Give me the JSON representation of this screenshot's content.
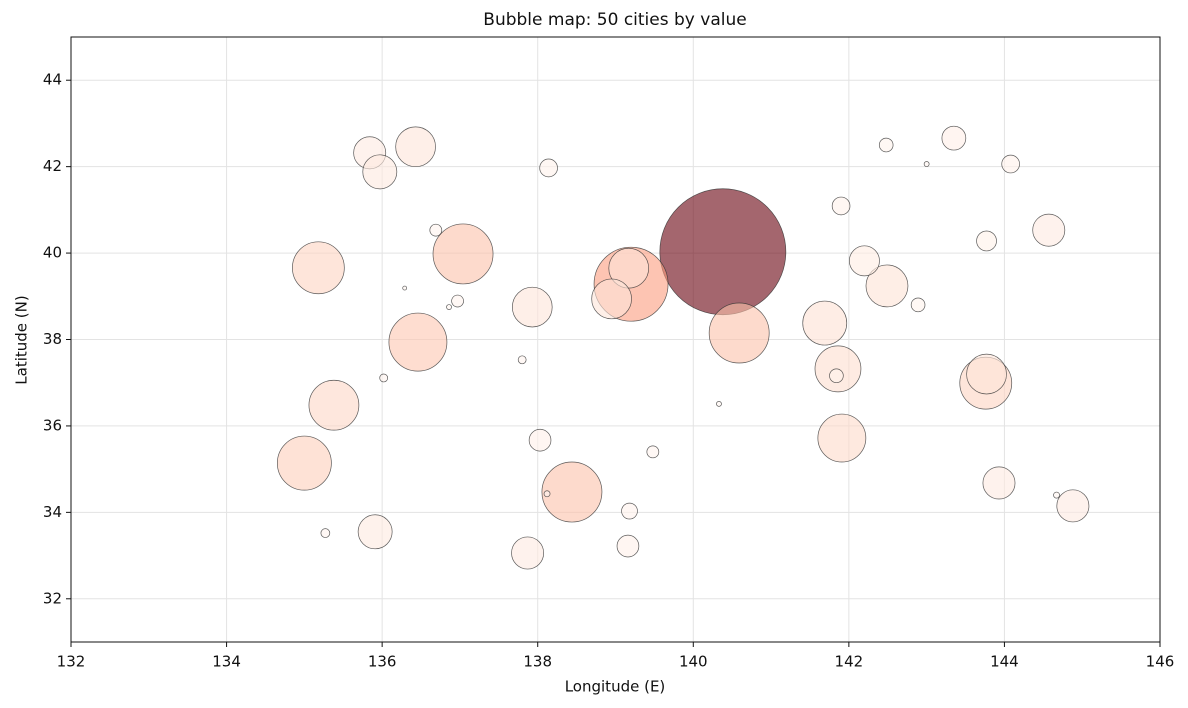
{
  "chart_data": {
    "type": "bubble",
    "title": "Bubble map: 50 cities by value",
    "xlabel": "Longitude (E)",
    "ylabel": "Latitude (N)",
    "xlim": [
      132,
      146
    ],
    "ylim": [
      31,
      45
    ],
    "xticks": [
      132,
      134,
      136,
      138,
      140,
      142,
      144,
      146
    ],
    "yticks": [
      32,
      34,
      36,
      38,
      40,
      42,
      44
    ],
    "grid": true,
    "colormap": "Reds",
    "x": [
      140.38,
      139.2,
      139.17,
      138.95,
      140.59,
      137.04,
      136.46,
      138.44,
      135.18,
      135.38,
      135.0,
      143.76,
      143.77,
      141.86,
      141.69,
      141.91,
      142.49,
      136.43,
      135.84,
      135.97,
      137.93,
      135.91,
      137.87,
      144.57,
      142.2,
      143.93,
      144.88,
      138.03,
      143.35,
      138.14,
      139.16,
      143.77,
      144.08,
      141.9,
      141.84,
      139.18,
      142.48,
      142.89,
      136.69,
      136.97,
      139.48,
      137.8,
      135.27,
      136.02,
      138.12,
      144.67,
      143.0,
      136.86,
      136.29,
      140.33
    ],
    "y": [
      40.03,
      39.28,
      39.65,
      38.94,
      38.15,
      39.98,
      37.94,
      34.47,
      39.66,
      36.48,
      35.14,
      36.99,
      37.2,
      37.32,
      38.38,
      35.72,
      39.24,
      42.46,
      42.32,
      41.88,
      38.75,
      33.55,
      33.06,
      40.53,
      39.82,
      34.68,
      34.15,
      35.67,
      42.66,
      41.97,
      33.22,
      40.28,
      42.06,
      41.09,
      37.16,
      34.03,
      42.5,
      38.8,
      40.53,
      38.89,
      35.4,
      37.53,
      33.52,
      37.11,
      34.43,
      34.4,
      42.06,
      38.75,
      39.19,
      36.51
    ],
    "values": [
      100,
      34.5,
      10,
      10,
      22.7,
      22.7,
      21.2,
      22.7,
      17,
      15.7,
      18.4,
      17,
      10,
      13.3,
      12.2,
      14.5,
      11.1,
      10,
      6.5,
      7.3,
      10,
      7.3,
      6.5,
      6.5,
      5.7,
      6.5,
      6.5,
      3,
      3.6,
      2,
      3,
      2.5,
      2,
      2,
      1.2,
      1.6,
      1.2,
      1.2,
      0.9,
      0.9,
      0.9,
      0.4,
      0.5,
      0.4,
      0.23,
      0.23,
      0.16,
      0.16,
      0.1,
      0.16
    ]
  }
}
